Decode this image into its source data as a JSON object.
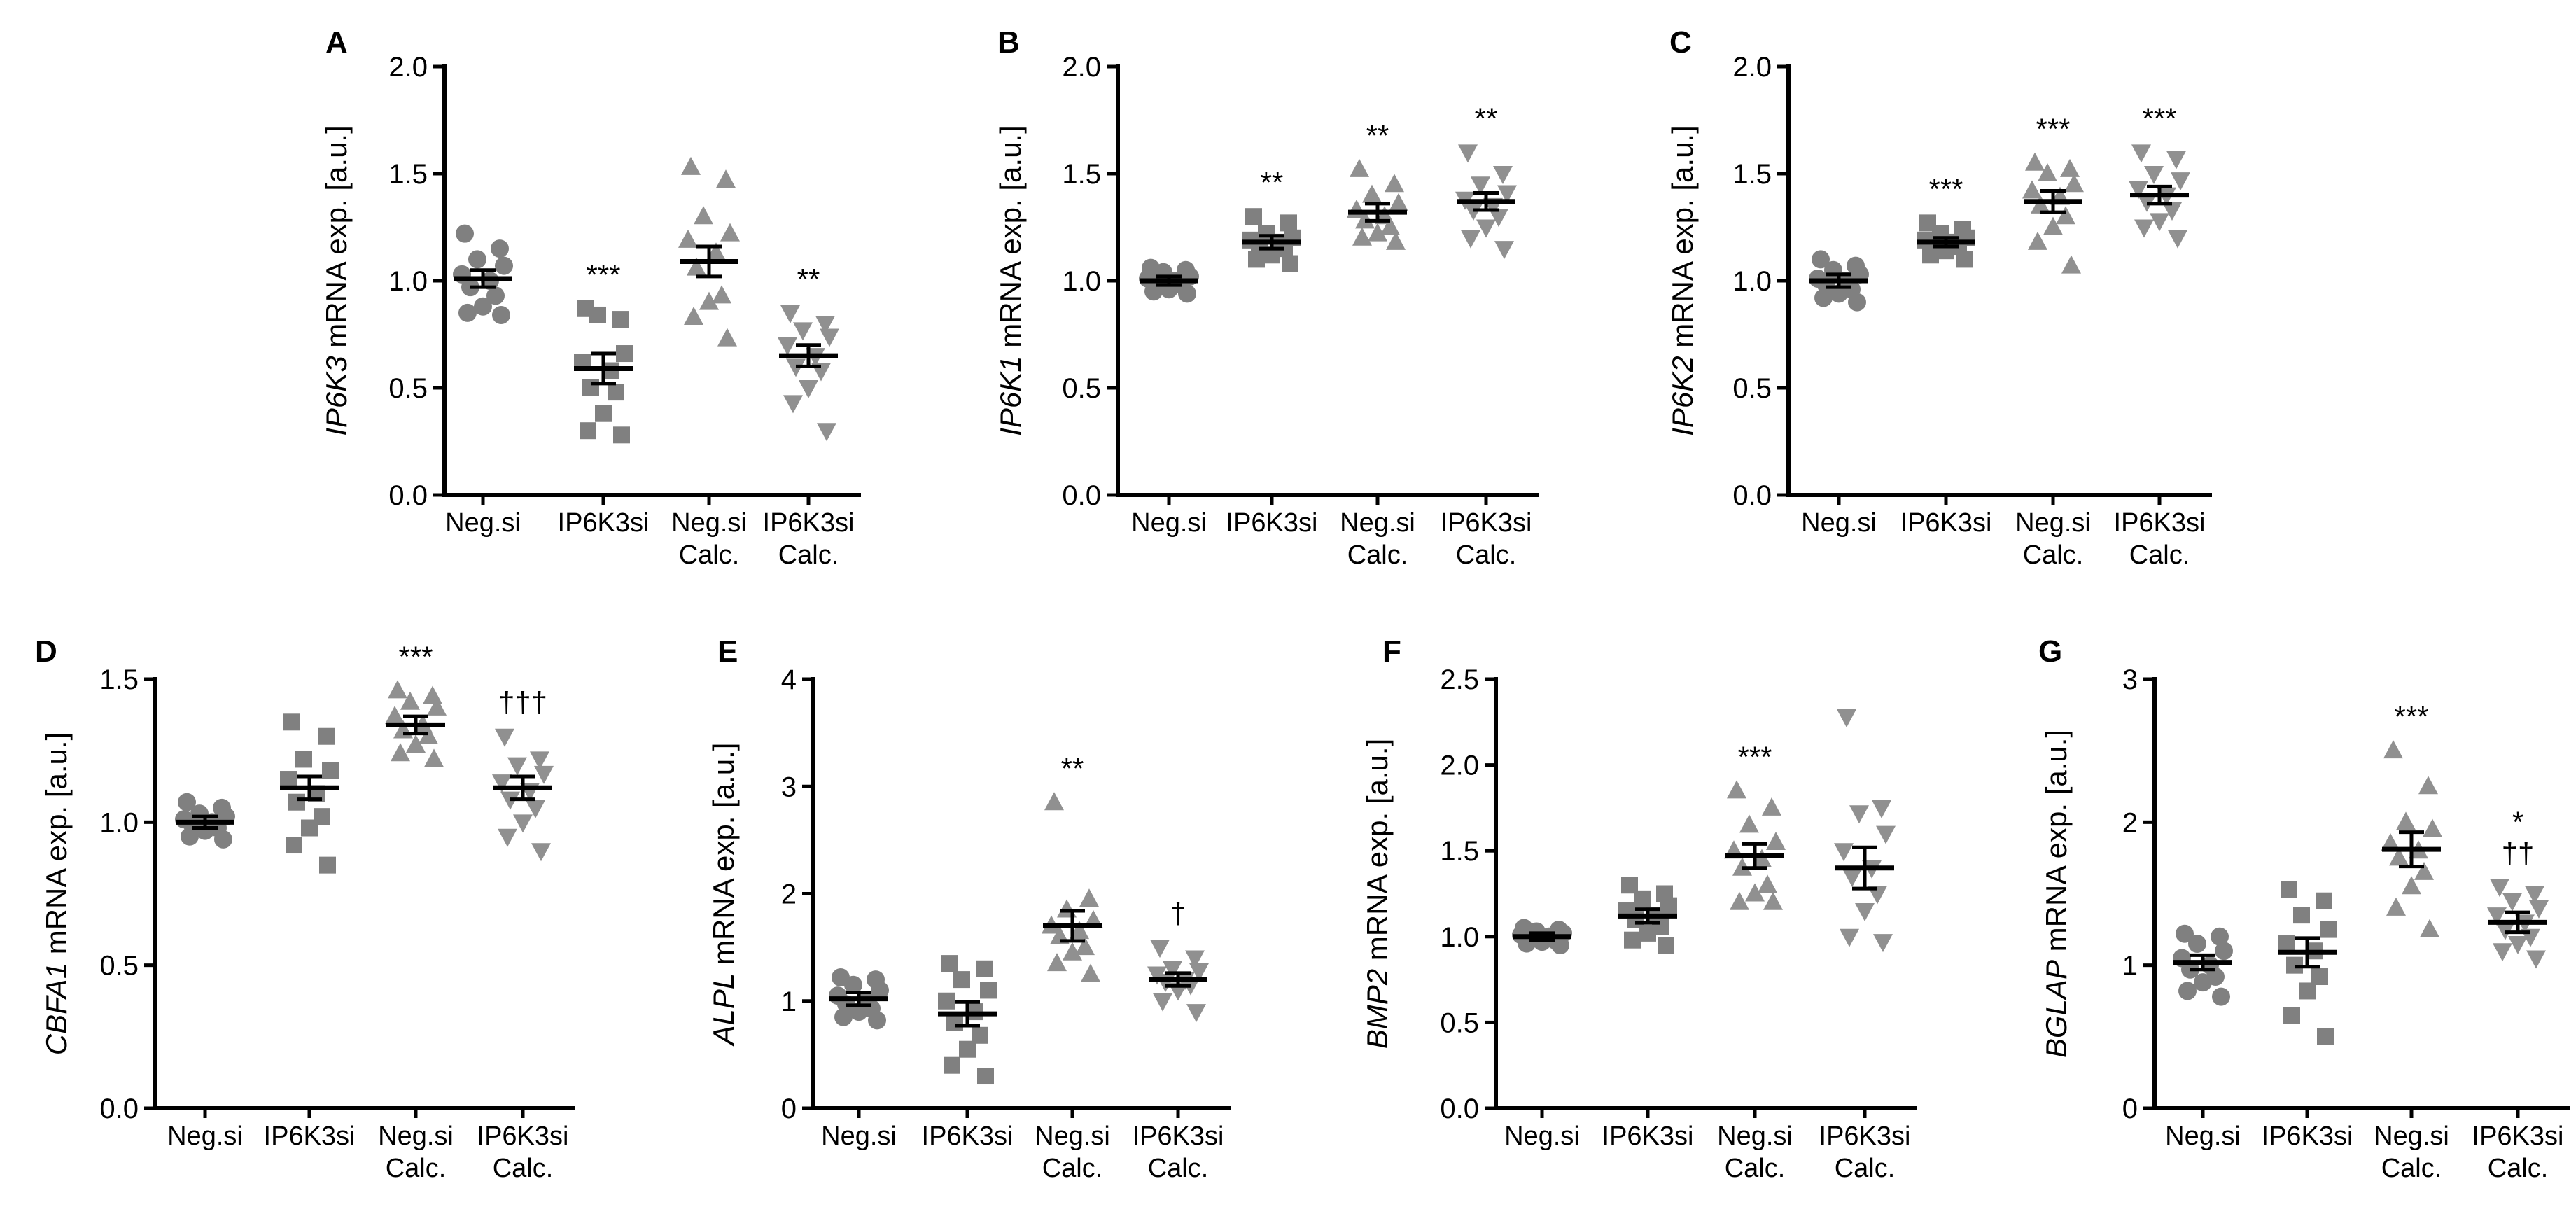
{
  "chart_data": [
    {
      "type": "scatter",
      "panel": "A",
      "gene": "IP6K3",
      "ylabel_rest": " mRNA exp. [a.u.]",
      "ylim": [
        0,
        2
      ],
      "yticks": [
        0,
        0.5,
        1,
        1.5,
        2
      ],
      "ytick_labels": [
        "0.0",
        "0.5",
        "1.0",
        "1.5",
        "2.0"
      ],
      "categories": [
        [
          "Neg.si"
        ],
        [
          "IP6K3si"
        ],
        [
          "Neg.si",
          "Calc."
        ],
        [
          "IP6K3si",
          "Calc."
        ]
      ],
      "series": [
        {
          "name": "Neg.si",
          "marker": "circle",
          "color": "#808080",
          "mean": 1.01,
          "sem": 0.04,
          "values": [
            1.22,
            1.15,
            1.1,
            1.07,
            1.03,
            1.0,
            0.97,
            0.93,
            0.88,
            0.85,
            0.84
          ],
          "sig": ""
        },
        {
          "name": "IP6K3si",
          "marker": "square",
          "color": "#808080",
          "mean": 0.59,
          "sem": 0.07,
          "values": [
            0.87,
            0.82,
            0.84,
            0.66,
            0.62,
            0.58,
            0.5,
            0.48,
            0.38,
            0.3,
            0.28
          ],
          "sig": "***"
        },
        {
          "name": "Neg.si Calc.",
          "marker": "triangle-up",
          "color": "#909090",
          "mean": 1.09,
          "sem": 0.07,
          "values": [
            1.53,
            1.47,
            1.3,
            1.22,
            1.19,
            1.13,
            1.06,
            0.93,
            0.9,
            0.83,
            0.73
          ],
          "sig": ""
        },
        {
          "name": "IP6K3si Calc.",
          "marker": "triangle-down",
          "color": "#909090",
          "mean": 0.65,
          "sem": 0.05,
          "values": [
            0.85,
            0.8,
            0.77,
            0.74,
            0.7,
            0.65,
            0.6,
            0.58,
            0.5,
            0.43,
            0.3
          ],
          "sig": "**"
        }
      ]
    },
    {
      "type": "scatter",
      "panel": "B",
      "gene": "IP6K1",
      "ylabel_rest": " mRNA exp. [a.u.]",
      "ylim": [
        0,
        2
      ],
      "yticks": [
        0,
        0.5,
        1,
        1.5,
        2
      ],
      "ytick_labels": [
        "0.0",
        "0.5",
        "1.0",
        "1.5",
        "2.0"
      ],
      "categories": [
        [
          "Neg.si"
        ],
        [
          "IP6K3si"
        ],
        [
          "Neg.si",
          "Calc."
        ],
        [
          "IP6K3si",
          "Calc."
        ]
      ],
      "series": [
        {
          "name": "Neg.si",
          "marker": "circle",
          "color": "#808080",
          "mean": 1.0,
          "sem": 0.02,
          "values": [
            1.06,
            1.05,
            1.04,
            1.02,
            1.01,
            1.0,
            0.99,
            0.98,
            0.96,
            0.95,
            0.94
          ],
          "sig": ""
        },
        {
          "name": "IP6K3si",
          "marker": "square",
          "color": "#808080",
          "mean": 1.18,
          "sem": 0.03,
          "values": [
            1.3,
            1.27,
            1.22,
            1.2,
            1.19,
            1.18,
            1.16,
            1.15,
            1.12,
            1.1,
            1.08
          ],
          "sig": "**"
        },
        {
          "name": "Neg.si Calc.",
          "marker": "triangle-up",
          "color": "#909090",
          "mean": 1.32,
          "sem": 0.04,
          "values": [
            1.52,
            1.45,
            1.4,
            1.36,
            1.33,
            1.3,
            1.28,
            1.25,
            1.22,
            1.2,
            1.18
          ],
          "sig": "**"
        },
        {
          "name": "IP6K3si Calc.",
          "marker": "triangle-down",
          "color": "#909090",
          "mean": 1.37,
          "sem": 0.04,
          "values": [
            1.6,
            1.5,
            1.45,
            1.41,
            1.38,
            1.35,
            1.33,
            1.3,
            1.25,
            1.2,
            1.15
          ],
          "sig": "**"
        }
      ]
    },
    {
      "type": "scatter",
      "panel": "C",
      "gene": "IP6K2",
      "ylabel_rest": " mRNA exp. [a.u.]",
      "ylim": [
        0,
        2
      ],
      "yticks": [
        0,
        0.5,
        1,
        1.5,
        2
      ],
      "ytick_labels": [
        "0.0",
        "0.5",
        "1.0",
        "1.5",
        "2.0"
      ],
      "categories": [
        [
          "Neg.si"
        ],
        [
          "IP6K3si"
        ],
        [
          "Neg.si",
          "Calc."
        ],
        [
          "IP6K3si",
          "Calc."
        ]
      ],
      "series": [
        {
          "name": "Neg.si",
          "marker": "circle",
          "color": "#808080",
          "mean": 1.0,
          "sem": 0.03,
          "values": [
            1.1,
            1.07,
            1.05,
            1.03,
            1.01,
            1.0,
            0.98,
            0.96,
            0.94,
            0.92,
            0.9
          ],
          "sig": ""
        },
        {
          "name": "IP6K3si",
          "marker": "square",
          "color": "#808080",
          "mean": 1.18,
          "sem": 0.02,
          "values": [
            1.27,
            1.24,
            1.22,
            1.2,
            1.19,
            1.18,
            1.17,
            1.16,
            1.14,
            1.12,
            1.1
          ],
          "sig": "***"
        },
        {
          "name": "Neg.si Calc.",
          "marker": "triangle-up",
          "color": "#909090",
          "mean": 1.37,
          "sem": 0.05,
          "values": [
            1.55,
            1.52,
            1.5,
            1.45,
            1.42,
            1.39,
            1.35,
            1.3,
            1.25,
            1.18,
            1.07
          ],
          "sig": "***"
        },
        {
          "name": "IP6K3si Calc.",
          "marker": "triangle-down",
          "color": "#909090",
          "mean": 1.4,
          "sem": 0.04,
          "values": [
            1.6,
            1.57,
            1.5,
            1.47,
            1.43,
            1.4,
            1.37,
            1.33,
            1.28,
            1.25,
            1.2
          ],
          "sig": "***"
        }
      ]
    },
    {
      "type": "scatter",
      "panel": "D",
      "gene": "CBFA1",
      "ylabel_rest": " mRNA exp. [a.u.]",
      "ylim": [
        0,
        1.5
      ],
      "yticks": [
        0,
        0.5,
        1,
        1.5
      ],
      "ytick_labels": [
        "0.0",
        "0.5",
        "1.0",
        "1.5"
      ],
      "categories": [
        [
          "Neg.si"
        ],
        [
          "IP6K3si"
        ],
        [
          "Neg.si",
          "Calc."
        ],
        [
          "IP6K3si",
          "Calc."
        ]
      ],
      "series": [
        {
          "name": "Neg.si",
          "marker": "circle",
          "color": "#808080",
          "mean": 1.0,
          "sem": 0.02,
          "values": [
            1.07,
            1.05,
            1.03,
            1.02,
            1.01,
            1.0,
            0.99,
            0.98,
            0.97,
            0.95,
            0.94
          ],
          "sig": ""
        },
        {
          "name": "IP6K3si",
          "marker": "square",
          "color": "#808080",
          "mean": 1.12,
          "sem": 0.04,
          "values": [
            1.35,
            1.3,
            1.22,
            1.18,
            1.15,
            1.1,
            1.07,
            1.02,
            0.98,
            0.92,
            0.85
          ],
          "sig": ""
        },
        {
          "name": "Neg.si Calc.",
          "marker": "triangle-up",
          "color": "#909090",
          "mean": 1.34,
          "sem": 0.03,
          "values": [
            1.46,
            1.44,
            1.42,
            1.4,
            1.37,
            1.34,
            1.32,
            1.3,
            1.27,
            1.24,
            1.22
          ],
          "sig": "***"
        },
        {
          "name": "IP6K3si Calc.",
          "marker": "triangle-down",
          "color": "#909090",
          "mean": 1.12,
          "sem": 0.04,
          "values": [
            1.3,
            1.22,
            1.2,
            1.17,
            1.14,
            1.11,
            1.08,
            1.05,
            1.0,
            0.95,
            0.9
          ],
          "sig": "†††"
        }
      ]
    },
    {
      "type": "scatter",
      "panel": "E",
      "gene": "ALPL",
      "ylabel_rest": " mRNA exp. [a.u.]",
      "ylim": [
        0,
        4
      ],
      "yticks": [
        0,
        1,
        2,
        3,
        4
      ],
      "ytick_labels": [
        "0",
        "1",
        "2",
        "3",
        "4"
      ],
      "categories": [
        [
          "Neg.si"
        ],
        [
          "IP6K3si"
        ],
        [
          "Neg.si",
          "Calc."
        ],
        [
          "IP6K3si",
          "Calc."
        ]
      ],
      "series": [
        {
          "name": "Neg.si",
          "marker": "circle",
          "color": "#808080",
          "mean": 1.02,
          "sem": 0.06,
          "values": [
            1.22,
            1.2,
            1.15,
            1.1,
            1.05,
            1.0,
            0.97,
            0.93,
            0.9,
            0.85,
            0.82
          ],
          "sig": ""
        },
        {
          "name": "IP6K3si",
          "marker": "square",
          "color": "#808080",
          "mean": 0.88,
          "sem": 0.11,
          "values": [
            1.35,
            1.3,
            1.2,
            1.1,
            1.0,
            0.9,
            0.8,
            0.68,
            0.55,
            0.4,
            0.3
          ],
          "sig": ""
        },
        {
          "name": "Neg.si Calc.",
          "marker": "triangle-up",
          "color": "#909090",
          "mean": 1.7,
          "sem": 0.14,
          "values": [
            2.85,
            1.95,
            1.85,
            1.75,
            1.7,
            1.65,
            1.6,
            1.5,
            1.45,
            1.35,
            1.25
          ],
          "sig": "**"
        },
        {
          "name": "IP6K3si Calc.",
          "marker": "triangle-down",
          "color": "#909090",
          "mean": 1.2,
          "sem": 0.06,
          "values": [
            1.5,
            1.4,
            1.3,
            1.28,
            1.25,
            1.2,
            1.18,
            1.15,
            1.1,
            1.0,
            0.9
          ],
          "sig": "†"
        }
      ]
    },
    {
      "type": "scatter",
      "panel": "F",
      "gene": "BMP2",
      "ylabel_rest": " mRNA exp. [a.u.]",
      "ylim": [
        0,
        2.5
      ],
      "yticks": [
        0,
        0.5,
        1,
        1.5,
        2,
        2.5
      ],
      "ytick_labels": [
        "0.0",
        "0.5",
        "1.0",
        "1.5",
        "2.0",
        "2.5"
      ],
      "categories": [
        [
          "Neg.si"
        ],
        [
          "IP6K3si"
        ],
        [
          "Neg.si",
          "Calc."
        ],
        [
          "IP6K3si",
          "Calc."
        ]
      ],
      "series": [
        {
          "name": "Neg.si",
          "marker": "circle",
          "color": "#808080",
          "mean": 1.0,
          "sem": 0.02,
          "values": [
            1.05,
            1.04,
            1.03,
            1.02,
            1.01,
            1.0,
            0.99,
            0.98,
            0.97,
            0.96,
            0.95
          ],
          "sig": ""
        },
        {
          "name": "IP6K3si",
          "marker": "square",
          "color": "#808080",
          "mean": 1.12,
          "sem": 0.04,
          "values": [
            1.3,
            1.25,
            1.22,
            1.18,
            1.15,
            1.12,
            1.1,
            1.06,
            1.02,
            0.98,
            0.95
          ],
          "sig": ""
        },
        {
          "name": "Neg.si Calc.",
          "marker": "triangle-up",
          "color": "#909090",
          "mean": 1.47,
          "sem": 0.07,
          "values": [
            1.85,
            1.75,
            1.65,
            1.55,
            1.5,
            1.45,
            1.4,
            1.3,
            1.25,
            1.2,
            1.2
          ],
          "sig": "***"
        },
        {
          "name": "IP6K3si Calc.",
          "marker": "triangle-down",
          "color": "#909090",
          "mean": 1.4,
          "sem": 0.12,
          "values": [
            2.28,
            1.75,
            1.72,
            1.6,
            1.5,
            1.4,
            1.35,
            1.25,
            1.15,
            1.0,
            0.97
          ],
          "sig": ""
        }
      ]
    },
    {
      "type": "scatter",
      "panel": "G",
      "gene": "BGLAP",
      "ylabel_rest": " mRNA exp. [a.u.]",
      "ylim": [
        0,
        3
      ],
      "yticks": [
        0,
        1,
        2,
        3
      ],
      "ytick_labels": [
        "0",
        "1",
        "2",
        "3"
      ],
      "categories": [
        [
          "Neg.si"
        ],
        [
          "IP6K3si"
        ],
        [
          "Neg.si",
          "Calc."
        ],
        [
          "IP6K3si",
          "Calc."
        ]
      ],
      "series": [
        {
          "name": "Neg.si",
          "marker": "circle",
          "color": "#808080",
          "mean": 1.02,
          "sem": 0.05,
          "values": [
            1.22,
            1.2,
            1.15,
            1.1,
            1.05,
            1.0,
            0.97,
            0.92,
            0.88,
            0.82,
            0.78
          ],
          "sig": ""
        },
        {
          "name": "IP6K3si",
          "marker": "square",
          "color": "#808080",
          "mean": 1.09,
          "sem": 0.1,
          "values": [
            1.53,
            1.45,
            1.35,
            1.25,
            1.15,
            1.1,
            1.0,
            0.92,
            0.82,
            0.65,
            0.5
          ],
          "sig": ""
        },
        {
          "name": "Neg.si Calc.",
          "marker": "triangle-up",
          "color": "#909090",
          "mean": 1.81,
          "sem": 0.12,
          "values": [
            2.5,
            2.25,
            2.0,
            1.95,
            1.85,
            1.8,
            1.75,
            1.65,
            1.55,
            1.4,
            1.25
          ],
          "sig": "***"
        },
        {
          "name": "IP6K3si Calc.",
          "marker": "triangle-down",
          "color": "#909090",
          "mean": 1.3,
          "sem": 0.07,
          "values": [
            1.55,
            1.5,
            1.45,
            1.4,
            1.35,
            1.3,
            1.25,
            1.2,
            1.15,
            1.1,
            1.05
          ],
          "sig": "*\n††"
        }
      ]
    }
  ]
}
